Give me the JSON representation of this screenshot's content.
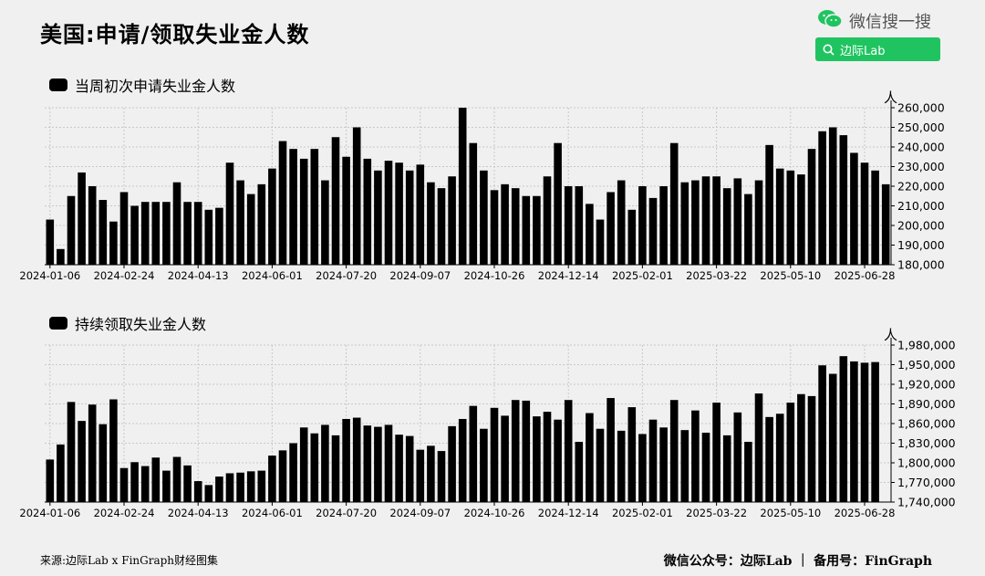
{
  "page": {
    "title": "美国:申请/领取失业金人数",
    "brand": {
      "name": "微信搜一搜",
      "search_text": "边际Lab",
      "accent": "#1fc460"
    },
    "source": "来源:边际Lab x FinGraph财经图集",
    "footer": "微信公众号：边际Lab ｜ 备用号：FinGraph"
  },
  "chart_data": [
    {
      "type": "bar",
      "title": "",
      "legend": "当周初次申请失业金人数",
      "unit_label": "人",
      "ylim": [
        180000,
        260000
      ],
      "yticks": [
        180000,
        190000,
        200000,
        210000,
        220000,
        230000,
        240000,
        250000,
        260000
      ],
      "xtick_labels": [
        "2024-01-06",
        "2024-02-24",
        "2024-04-13",
        "2024-06-01",
        "2024-07-20",
        "2024-09-07",
        "2024-10-26",
        "2024-12-14",
        "2025-02-01",
        "2025-03-22",
        "2025-05-10",
        "2025-06-28"
      ],
      "grid": true,
      "bar_color": "#000000",
      "values": [
        203000,
        188000,
        215000,
        227000,
        220000,
        213000,
        202000,
        217000,
        210000,
        212000,
        212000,
        212000,
        222000,
        212000,
        212000,
        208000,
        209000,
        232000,
        223000,
        216000,
        221000,
        229000,
        243000,
        239000,
        234000,
        239000,
        223000,
        245000,
        235000,
        250000,
        234000,
        228000,
        233000,
        232000,
        228000,
        231000,
        222000,
        219000,
        225000,
        260000,
        242000,
        228000,
        218000,
        221000,
        219000,
        215000,
        215000,
        225000,
        242000,
        220000,
        220000,
        211000,
        203000,
        217000,
        223000,
        208000,
        220000,
        214000,
        220000,
        242000,
        222000,
        223000,
        225000,
        225000,
        219000,
        224000,
        216000,
        223000,
        241000,
        229000,
        228000,
        226000,
        239000,
        248000,
        250000,
        246000,
        237000,
        232000,
        228000,
        221000
      ]
    },
    {
      "type": "bar",
      "title": "",
      "legend": "持续领取失业金人数",
      "unit_label": "人",
      "ylim": [
        1740000,
        1980000
      ],
      "yticks": [
        1740000,
        1770000,
        1800000,
        1830000,
        1860000,
        1890000,
        1920000,
        1950000,
        1980000
      ],
      "xtick_labels": [
        "2024-01-06",
        "2024-02-24",
        "2024-04-13",
        "2024-06-01",
        "2024-07-20",
        "2024-09-07",
        "2024-10-26",
        "2024-12-14",
        "2025-02-01",
        "2025-03-22",
        "2025-05-10",
        "2025-06-28"
      ],
      "grid": true,
      "bar_color": "#000000",
      "values": [
        1805000,
        1828000,
        1893000,
        1864000,
        1889000,
        1859000,
        1897000,
        1792000,
        1801000,
        1795000,
        1808000,
        1788000,
        1809000,
        1796000,
        1772000,
        1766000,
        1779000,
        1784000,
        1785000,
        1787000,
        1788000,
        1811000,
        1819000,
        1830000,
        1854000,
        1845000,
        1858000,
        1842000,
        1867000,
        1869000,
        1857000,
        1855000,
        1858000,
        1843000,
        1841000,
        1820000,
        1826000,
        1818000,
        1856000,
        1867000,
        1887000,
        1852000,
        1884000,
        1872000,
        1896000,
        1895000,
        1871000,
        1878000,
        1866000,
        1896000,
        1832000,
        1876000,
        1852000,
        1899000,
        1849000,
        1885000,
        1844000,
        1866000,
        1854000,
        1896000,
        1850000,
        1880000,
        1846000,
        1892000,
        1842000,
        1877000,
        1832000,
        1906000,
        1870000,
        1875000,
        1892000,
        1905000,
        1902000,
        1949000,
        1936000,
        1963000,
        1955000,
        1953000,
        1954000
      ]
    }
  ]
}
